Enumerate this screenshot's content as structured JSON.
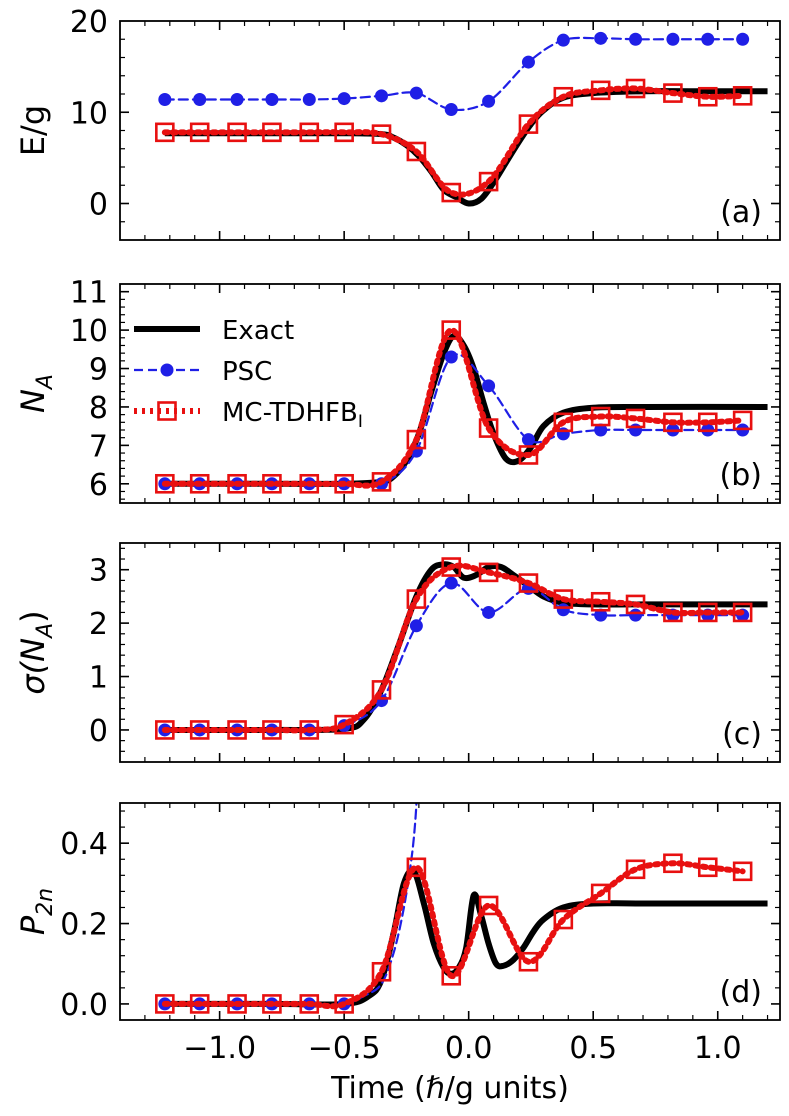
{
  "chart_data": [
    {
      "id": "a",
      "type": "line",
      "panel_label": "(a)",
      "ylabel": "E/g",
      "ylim": [
        -4,
        20
      ],
      "yticks": [
        0,
        10,
        20
      ],
      "yticklabels": [
        "0",
        "10",
        "20"
      ],
      "xlim": [
        -1.4,
        1.25
      ],
      "series": [
        {
          "name": "Exact",
          "style": "exact",
          "x": [
            -1.22,
            -0.8,
            -0.5,
            -0.35,
            -0.3,
            -0.25,
            -0.2,
            -0.15,
            -0.1,
            -0.05,
            0.0,
            0.05,
            0.1,
            0.15,
            0.2,
            0.25,
            0.3,
            0.38,
            0.5,
            0.7,
            0.9,
            1.2
          ],
          "y": [
            7.7,
            7.7,
            7.7,
            7.6,
            7.2,
            6.4,
            5.2,
            3.5,
            1.5,
            0.7,
            0.0,
            0.5,
            2.3,
            4.5,
            6.7,
            8.7,
            10.2,
            11.6,
            12.1,
            12.3,
            12.3,
            12.3
          ]
        },
        {
          "name": "PSC",
          "style": "psc",
          "x": [
            -1.22,
            -1.08,
            -0.93,
            -0.79,
            -0.64,
            -0.5,
            -0.35,
            -0.21,
            -0.07,
            0.08,
            0.24,
            0.38,
            0.53,
            0.67,
            0.82,
            0.96,
            1.1
          ],
          "y": [
            11.4,
            11.4,
            11.4,
            11.4,
            11.4,
            11.5,
            11.8,
            12.1,
            10.3,
            11.2,
            15.5,
            17.9,
            18.1,
            18.0,
            18.0,
            18.0,
            18.0
          ]
        },
        {
          "name": "MC-TDHFB",
          "style": "mctdhfb",
          "x": [
            -1.22,
            -1.08,
            -0.93,
            -0.79,
            -0.64,
            -0.5,
            -0.35,
            -0.21,
            -0.07,
            0.08,
            0.24,
            0.38,
            0.53,
            0.67,
            0.82,
            0.96,
            1.1
          ],
          "y": [
            7.8,
            7.8,
            7.8,
            7.8,
            7.8,
            7.8,
            7.6,
            5.7,
            1.2,
            2.4,
            8.7,
            11.7,
            12.4,
            12.6,
            12.1,
            11.7,
            11.8
          ]
        }
      ]
    },
    {
      "id": "b",
      "type": "line",
      "panel_label": "(b)",
      "ylabel": "N",
      "ylabel_sub": "A",
      "ylim": [
        5.5,
        11.2
      ],
      "yticks": [
        6,
        7,
        8,
        9,
        10,
        11
      ],
      "yticklabels": [
        "6",
        "7",
        "8",
        "9",
        "10",
        "11"
      ],
      "xlim": [
        -1.4,
        1.25
      ],
      "legend": {
        "placement": "top-left",
        "entries": [
          {
            "label": "Exact",
            "style": "exact"
          },
          {
            "label": "PSC",
            "style": "psc"
          },
          {
            "label": "MC-TDHFB",
            "label_sub": "I",
            "style": "mctdhfb"
          }
        ]
      },
      "series": [
        {
          "name": "Exact",
          "style": "exact",
          "x": [
            -1.22,
            -0.8,
            -0.5,
            -0.35,
            -0.3,
            -0.25,
            -0.2,
            -0.15,
            -0.1,
            -0.06,
            -0.02,
            0.02,
            0.06,
            0.1,
            0.15,
            0.2,
            0.25,
            0.3,
            0.38,
            0.5,
            0.7,
            1.2
          ],
          "y": [
            6.0,
            6.0,
            6.0,
            6.05,
            6.2,
            6.6,
            7.3,
            8.4,
            9.4,
            9.85,
            9.6,
            9.0,
            8.1,
            7.3,
            6.65,
            6.6,
            6.95,
            7.5,
            7.85,
            7.98,
            8.0,
            8.0
          ]
        },
        {
          "name": "PSC",
          "style": "psc",
          "x": [
            -1.22,
            -1.08,
            -0.93,
            -0.79,
            -0.64,
            -0.5,
            -0.35,
            -0.21,
            -0.07,
            0.08,
            0.24,
            0.38,
            0.53,
            0.67,
            0.82,
            0.96,
            1.1
          ],
          "y": [
            6.0,
            6.0,
            6.0,
            6.0,
            6.0,
            6.0,
            6.0,
            6.85,
            9.3,
            8.55,
            7.15,
            7.3,
            7.4,
            7.4,
            7.4,
            7.4,
            7.4
          ]
        },
        {
          "name": "MC-TDHFB",
          "style": "mctdhfb",
          "x": [
            -1.22,
            -1.08,
            -0.93,
            -0.79,
            -0.64,
            -0.5,
            -0.35,
            -0.21,
            -0.07,
            0.08,
            0.24,
            0.38,
            0.53,
            0.67,
            0.82,
            0.96,
            1.1
          ],
          "y": [
            6.0,
            6.0,
            6.0,
            6.0,
            6.0,
            6.0,
            6.05,
            7.15,
            10.0,
            7.45,
            6.75,
            7.6,
            7.75,
            7.7,
            7.6,
            7.6,
            7.65
          ]
        }
      ]
    },
    {
      "id": "c",
      "type": "line",
      "panel_label": "(c)",
      "ylabel": "σ(N",
      "ylabel_sub": "A",
      "ylabel_end": ")",
      "ylim": [
        -0.6,
        3.5
      ],
      "yticks": [
        0,
        1,
        2,
        3
      ],
      "yticklabels": [
        "0",
        "1",
        "2",
        "3"
      ],
      "xlim": [
        -1.4,
        1.25
      ],
      "series": [
        {
          "name": "Exact",
          "style": "exact",
          "x": [
            -1.22,
            -0.8,
            -0.5,
            -0.42,
            -0.35,
            -0.28,
            -0.21,
            -0.15,
            -0.1,
            -0.06,
            -0.02,
            0.03,
            0.08,
            0.13,
            0.18,
            0.24,
            0.3,
            0.38,
            0.5,
            0.7,
            1.2
          ],
          "y": [
            0.0,
            0.0,
            0.02,
            0.2,
            0.75,
            1.6,
            2.5,
            3.0,
            3.1,
            3.05,
            2.85,
            2.9,
            3.05,
            3.05,
            2.9,
            2.7,
            2.5,
            2.38,
            2.35,
            2.35,
            2.35
          ]
        },
        {
          "name": "PSC",
          "style": "psc",
          "x": [
            -1.22,
            -1.08,
            -0.93,
            -0.79,
            -0.64,
            -0.5,
            -0.35,
            -0.21,
            -0.07,
            0.08,
            0.24,
            0.38,
            0.53,
            0.67,
            0.82,
            0.96,
            1.1
          ],
          "y": [
            0.0,
            0.0,
            0.0,
            0.0,
            0.0,
            0.08,
            0.55,
            1.95,
            2.75,
            2.2,
            2.65,
            2.25,
            2.15,
            2.15,
            2.15,
            2.15,
            2.15
          ]
        },
        {
          "name": "MC-TDHFB",
          "style": "mctdhfb",
          "x": [
            -1.22,
            -1.08,
            -0.93,
            -0.79,
            -0.64,
            -0.5,
            -0.35,
            -0.21,
            -0.07,
            0.08,
            0.24,
            0.38,
            0.53,
            0.67,
            0.82,
            0.96,
            1.1
          ],
          "y": [
            0.0,
            0.0,
            0.0,
            0.0,
            0.0,
            0.1,
            0.75,
            2.45,
            3.05,
            2.95,
            2.75,
            2.45,
            2.4,
            2.35,
            2.2,
            2.2,
            2.2
          ]
        }
      ]
    },
    {
      "id": "d",
      "type": "line",
      "panel_label": "(d)",
      "ylabel": "P",
      "ylabel_sub": "2n",
      "ylim": [
        -0.04,
        0.5
      ],
      "yticks": [
        0.0,
        0.2,
        0.4
      ],
      "yticklabels": [
        "0.0",
        "0.2",
        "0.4"
      ],
      "xlim": [
        -1.4,
        1.25
      ],
      "xticks": [
        -1.0,
        -0.5,
        0.0,
        0.5,
        1.0
      ],
      "xticklabels": [
        "−1.0",
        "−0.5",
        "0.0",
        "0.5",
        "1.0"
      ],
      "xlabel": "Time (ℏ/g units)",
      "series": [
        {
          "name": "Exact",
          "style": "exact",
          "x": [
            -1.22,
            -0.8,
            -0.5,
            -0.4,
            -0.35,
            -0.3,
            -0.26,
            -0.22,
            -0.18,
            -0.14,
            -0.1,
            -0.07,
            -0.04,
            -0.01,
            0.02,
            0.05,
            0.08,
            0.11,
            0.14,
            0.18,
            0.22,
            0.26,
            0.3,
            0.38,
            0.5,
            0.7,
            1.2
          ],
          "y": [
            0.0,
            0.0,
            0.0,
            0.02,
            0.06,
            0.18,
            0.3,
            0.33,
            0.25,
            0.15,
            0.09,
            0.075,
            0.09,
            0.14,
            0.27,
            0.22,
            0.15,
            0.1,
            0.095,
            0.11,
            0.14,
            0.18,
            0.21,
            0.24,
            0.25,
            0.25,
            0.25
          ]
        },
        {
          "name": "PSC",
          "style": "psc",
          "clip_top": true,
          "x": [
            -1.22,
            -1.08,
            -0.93,
            -0.79,
            -0.64,
            -0.5,
            -0.42,
            -0.35,
            -0.3,
            -0.26,
            -0.23,
            -0.215,
            -0.205
          ],
          "y": [
            0.0,
            0.0,
            0.0,
            0.0,
            0.0,
            0.0,
            0.02,
            0.05,
            0.13,
            0.24,
            0.36,
            0.45,
            0.55
          ]
        },
        {
          "name": "MC-TDHFB",
          "style": "mctdhfb",
          "x": [
            -1.22,
            -1.08,
            -0.93,
            -0.79,
            -0.64,
            -0.5,
            -0.35,
            -0.21,
            -0.07,
            0.08,
            0.24,
            0.38,
            0.53,
            0.67,
            0.82,
            0.96,
            1.1
          ],
          "y": [
            0.0,
            0.0,
            0.0,
            0.0,
            0.0,
            0.0,
            0.08,
            0.34,
            0.07,
            0.245,
            0.105,
            0.21,
            0.275,
            0.335,
            0.35,
            0.34,
            0.33
          ]
        }
      ]
    }
  ]
}
